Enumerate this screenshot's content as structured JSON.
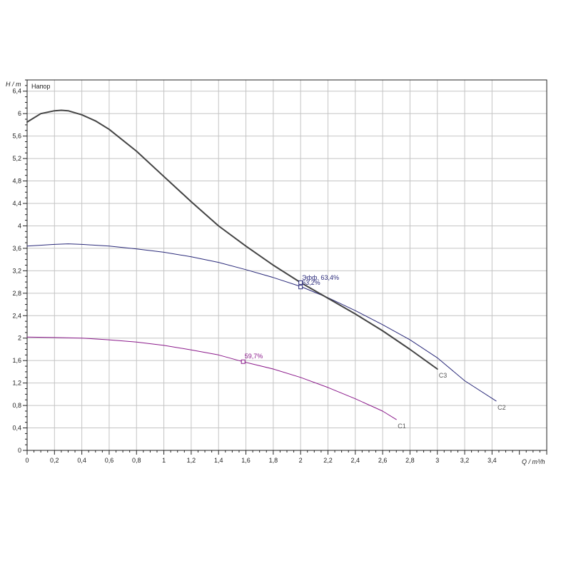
{
  "chart_data": {
    "type": "line",
    "title": "Напор",
    "xlabel": "Q / m³/h",
    "ylabel": "H / m",
    "xlim": [
      0,
      3.8
    ],
    "ylim": [
      0,
      6.6
    ],
    "x_ticks": [
      0,
      0.2,
      0.4,
      0.6,
      0.8,
      1,
      1.2,
      1.4,
      1.6,
      1.8,
      2,
      2.2,
      2.4,
      2.6,
      2.8,
      3,
      3.2,
      3.4
    ],
    "x_tick_labels": [
      "0",
      "0,2",
      "0,4",
      "0,6",
      "0,8",
      "1",
      "1,2",
      "1,4",
      "1,6",
      "1,8",
      "2",
      "2,2",
      "2,4",
      "2,6",
      "2,8",
      "3",
      "3,2",
      "3,4"
    ],
    "y_ticks": [
      0,
      0.4,
      0.8,
      1.2,
      1.6,
      2,
      2.4,
      2.8,
      3.2,
      3.6,
      4,
      4.4,
      4.8,
      5.2,
      5.6,
      6,
      6.4
    ],
    "y_tick_labels": [
      "0",
      "0,4",
      "0,8",
      "1,2",
      "1,6",
      "2",
      "2,4",
      "2,8",
      "3,2",
      "3,6",
      "4",
      "4,4",
      "4,8",
      "5,2",
      "5,6",
      "6",
      "6,4"
    ],
    "grid": true,
    "series": [
      {
        "name": "C1",
        "color": "#8b1a8b",
        "width": 1,
        "x": [
          0,
          0.2,
          0.4,
          0.6,
          0.8,
          1.0,
          1.2,
          1.4,
          1.58,
          1.8,
          2.0,
          2.2,
          2.4,
          2.6,
          2.7
        ],
        "y": [
          2.02,
          2.01,
          2.0,
          1.97,
          1.93,
          1.87,
          1.79,
          1.7,
          1.58,
          1.45,
          1.3,
          1.12,
          0.92,
          0.7,
          0.55
        ]
      },
      {
        "name": "C2",
        "color": "#2a2a7a",
        "width": 1,
        "x": [
          0,
          0.2,
          0.3,
          0.4,
          0.6,
          0.8,
          1.0,
          1.2,
          1.4,
          1.6,
          1.8,
          2.0,
          2.2,
          2.4,
          2.6,
          2.8,
          3.0,
          3.2,
          3.43
        ],
        "y": [
          3.64,
          3.67,
          3.68,
          3.67,
          3.64,
          3.59,
          3.53,
          3.45,
          3.35,
          3.22,
          3.08,
          2.92,
          2.72,
          2.49,
          2.24,
          1.97,
          1.65,
          1.24,
          0.88
        ]
      },
      {
        "name": "C3",
        "color": "#444444",
        "width": 2,
        "x": [
          0,
          0.1,
          0.2,
          0.25,
          0.3,
          0.4,
          0.5,
          0.6,
          0.8,
          1.0,
          1.2,
          1.4,
          1.6,
          1.8,
          2.0,
          2.2,
          2.4,
          2.6,
          2.8,
          3.0
        ],
        "y": [
          5.85,
          6.0,
          6.05,
          6.06,
          6.05,
          5.98,
          5.87,
          5.72,
          5.33,
          4.88,
          4.43,
          4.0,
          3.64,
          3.3,
          2.99,
          2.71,
          2.43,
          2.13,
          1.8,
          1.45
        ]
      }
    ],
    "points": [
      {
        "x": 1.58,
        "y": 1.58,
        "label": "59,7%",
        "color": "#8b1a8b"
      },
      {
        "x": 2.0,
        "y": 2.91,
        "label": "63,2%",
        "color": "#2a2a7a"
      },
      {
        "x": 2.0,
        "y": 2.99,
        "label": "Эфф. 63,4%",
        "color": "#2a2a7a"
      }
    ]
  }
}
